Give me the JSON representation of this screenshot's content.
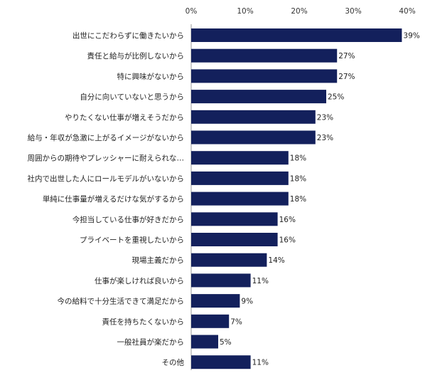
{
  "chart_data": {
    "type": "bar",
    "orientation": "horizontal",
    "title": "",
    "xlabel": "",
    "ylabel": "",
    "xlim": [
      0,
      40
    ],
    "ticks": [
      "0%",
      "10%",
      "20%",
      "30%",
      "40%"
    ],
    "grid": false,
    "categories": [
      "出世にこだわらずに働きたいから",
      "責任と給与が比例しないから",
      "特に興味がないから",
      "自分に向いていないと思うから",
      "やりたくない仕事が増えそうだから",
      "給与・年収が急激に上がるイメージがないから",
      "周囲からの期待やプレッシャーに耐えられな…",
      "社内で出世した人にロールモデルがいないから",
      "単純に仕事量が増えるだけな気がするから",
      "今担当している仕事が好きだから",
      "プライベートを重視したいから",
      "現場主義だから",
      "仕事が楽しければ良いから",
      "今の給料で十分生活できて満足だから",
      "責任を持ちたくないから",
      "一般社員が楽だから",
      "その他"
    ],
    "values": [
      39,
      27,
      27,
      25,
      23,
      23,
      18,
      18,
      18,
      16,
      16,
      14,
      11,
      9,
      7,
      5,
      11
    ],
    "value_labels": [
      "39%",
      "27%",
      "27%",
      "25%",
      "23%",
      "23%",
      "18%",
      "18%",
      "18%",
      "16%",
      "16%",
      "14%",
      "11%",
      "9%",
      "7%",
      "5%",
      "11%"
    ],
    "bar_color": "#13205c"
  }
}
